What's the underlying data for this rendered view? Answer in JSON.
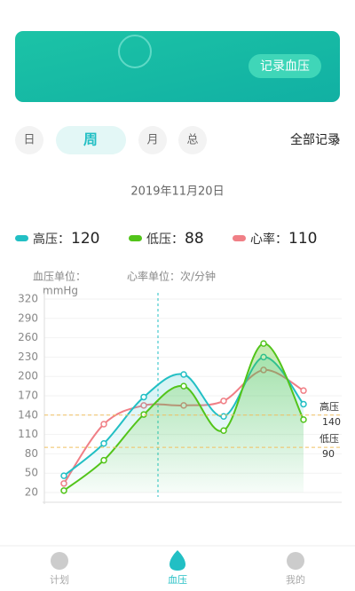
{
  "banner": {
    "button": "记录血压"
  },
  "tabs": [
    "日",
    "周",
    "月",
    "总"
  ],
  "active_tab": 1,
  "all_records": "全部记录",
  "date": "2019年11月20日",
  "readings": [
    {
      "label": "高压：",
      "value": 120,
      "color": "#22bfc4"
    },
    {
      "label": "低压：",
      "value": 88,
      "color": "#52c41a"
    },
    {
      "label": "心率：",
      "value": 110,
      "color": "#f07f86"
    }
  ],
  "units": {
    "bp_label": "血压单位：",
    "bp_unit": "mmHg",
    "hr": "心率单位：次/分钟"
  },
  "chart_data": {
    "type": "line",
    "categories": [
      null,
      null,
      null,
      null,
      null,
      null,
      null
    ],
    "series": [
      {
        "name": "心率",
        "color": "#f07f86",
        "values": [
          34,
          126,
          155,
          155,
          162,
          210,
          178
        ]
      },
      {
        "name": "高压",
        "color": "#22bfc4",
        "values": [
          46,
          96,
          168,
          203,
          138,
          230,
          157
        ]
      },
      {
        "name": "低压",
        "color": "#52c41a",
        "values": [
          23,
          70,
          141,
          185,
          116,
          251,
          133
        ]
      }
    ],
    "ylim": [
      20,
      320
    ],
    "yticks": [
      20,
      50,
      80,
      110,
      140,
      170,
      200,
      230,
      260,
      290,
      320
    ],
    "grid": true,
    "reference_lines": [
      {
        "label": "高压",
        "value": 140,
        "color": "#f0c060"
      },
      {
        "label": "低压",
        "value": 90,
        "color": "#f0c060"
      }
    ]
  },
  "nav": [
    "计划",
    "血压",
    "我的"
  ],
  "active_nav": 1
}
